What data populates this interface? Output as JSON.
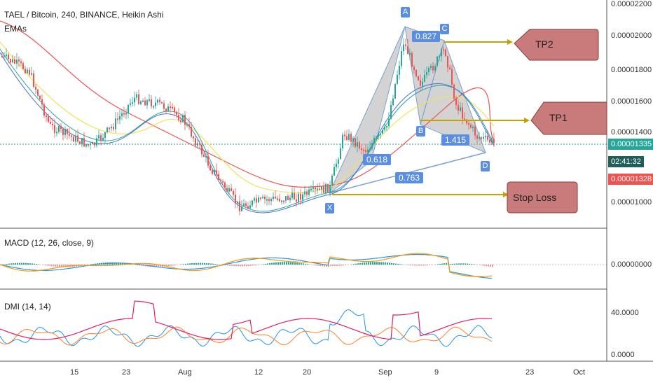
{
  "header": {
    "title": "TAEL / Bitcoin, 240, BINANCE, Heikin Ashi",
    "emas": "EMAs"
  },
  "indicators": {
    "macd": "MACD (12, 26, close, 9)",
    "dmi": "DMI (14, 14)"
  },
  "pattern": {
    "points": [
      "A",
      "C",
      "B",
      "X",
      "D"
    ],
    "ratios": {
      "ac": "0.827",
      "xab": "0.618",
      "bd": "1.415",
      "xd": "0.763"
    }
  },
  "targets": {
    "tp2": "TP2",
    "tp1": "TP1",
    "stop": "Stop Loss"
  },
  "price_axis": [
    "0.00002200",
    "0.00002000",
    "0.00001800",
    "0.00001600",
    "0.00001400",
    "0.00001000"
  ],
  "price_tags": {
    "last": "0.00001335",
    "countdown": "02:41:32",
    "bid": "0.00001328"
  },
  "macd_axis": "0.00000000",
  "dmi_axis": [
    "40.0000",
    "0.0000"
  ],
  "time_axis": [
    "15",
    "23",
    "Aug",
    "12",
    "20",
    "Sep",
    "9",
    "23",
    "Oct"
  ],
  "colors": {
    "accent": "#5b8ede",
    "callout": "#c97a7a",
    "arrow": "#c8a000",
    "tag_last": "#26a69a",
    "tag_bid": "#ef5350"
  }
}
